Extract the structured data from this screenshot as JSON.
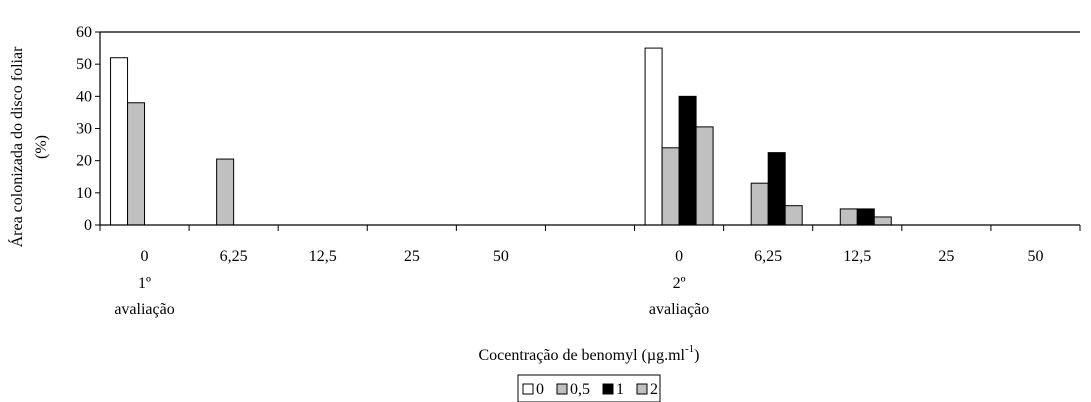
{
  "chart_data": {
    "type": "bar",
    "ylabel_line1": "Área colonizada do disco foliar",
    "ylabel_line2": "(%)",
    "xlabel_main": "Cocentração de benomyl (",
    "xlabel_mu": "µ",
    "xlabel_unit": "g.ml",
    "xlabel_sup": "-1",
    "xlabel_close": ")",
    "ylim": [
      0,
      60
    ],
    "yticks": [
      "0",
      "10",
      "20",
      "30",
      "40",
      "50",
      "60"
    ],
    "categories": [
      "0",
      "6,25",
      "12,5",
      "25",
      "50",
      "",
      "0",
      "6,25",
      "12,5",
      "25",
      "50"
    ],
    "groups": [
      {
        "line1": "1º",
        "line2": "avaliação",
        "at_category": 0
      },
      {
        "line1": "2º",
        "line2": "avaliação",
        "at_category": 6
      }
    ],
    "series": [
      {
        "name": "0",
        "color": "#ffffff",
        "values": [
          52,
          0,
          0,
          0,
          0,
          0,
          55,
          0,
          0,
          0,
          0
        ]
      },
      {
        "name": "0,5",
        "color": "#c0c0c0",
        "values": [
          38,
          20.5,
          0,
          0,
          0,
          0,
          24,
          13,
          5,
          0,
          0
        ]
      },
      {
        "name": "1",
        "color": "#000000",
        "values": [
          0,
          0,
          0,
          0,
          0,
          0,
          40,
          22.5,
          5,
          0,
          0
        ]
      },
      {
        "name": "2",
        "color": "#c0c0c0",
        "values": [
          0,
          0,
          0,
          0,
          0,
          0,
          30.5,
          6,
          2.5,
          0,
          0
        ]
      }
    ],
    "grid": false,
    "legend_position": "bottom-center"
  }
}
